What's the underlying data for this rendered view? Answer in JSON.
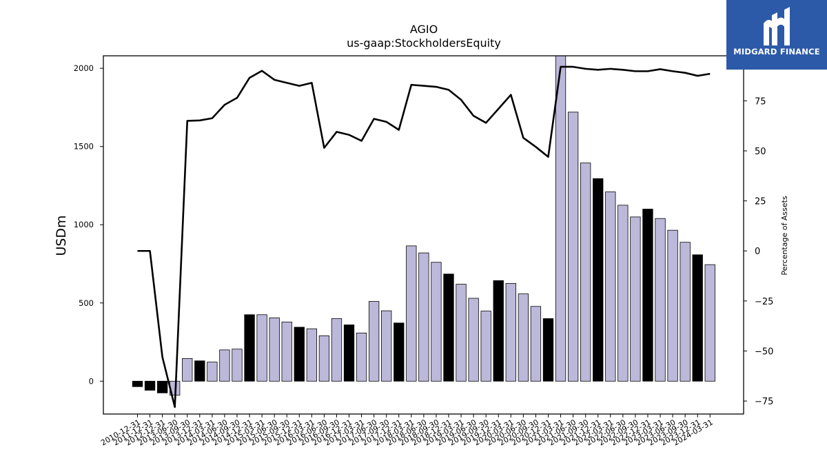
{
  "chart_data": {
    "type": "bar",
    "title": "AGIO",
    "subtitle": "us-gaap:StockholdersEquity",
    "ylabel": "USDm",
    "y2label": "Percentage of Assets",
    "ylim": [
      -210,
      2080
    ],
    "y2lim": [
      -81.5,
      97.5
    ],
    "yticks": [
      0,
      500,
      1000,
      1500,
      2000
    ],
    "y2ticks": [
      -75,
      -50,
      -25,
      0,
      25,
      50,
      75
    ],
    "categories": [
      "2010-12-31",
      "2011-12-31",
      "2012-12-31",
      "2013-06-30",
      "2013-09-30",
      "2013-12-31",
      "2014-03-31",
      "2014-06-30",
      "2014-09-30",
      "2014-12-31",
      "2015-03-31",
      "2015-06-30",
      "2015-09-30",
      "2015-12-31",
      "2016-03-31",
      "2016-06-30",
      "2016-09-30",
      "2016-12-31",
      "2017-03-31",
      "2017-06-30",
      "2017-09-30",
      "2017-12-31",
      "2018-03-31",
      "2018-06-30",
      "2018-09-30",
      "2018-12-31",
      "2019-03-31",
      "2019-06-30",
      "2019-09-30",
      "2019-12-31",
      "2020-03-31",
      "2020-06-30",
      "2020-09-30",
      "2020-12-31",
      "2021-03-31",
      "2021-06-30",
      "2021-09-30",
      "2021-12-31",
      "2022-03-31",
      "2022-06-30",
      "2022-09-30",
      "2022-12-31",
      "2023-03-31",
      "2023-06-30",
      "2023-09-30",
      "2023-12-31",
      "2024-03-31"
    ],
    "series": [
      {
        "type": "bar",
        "values": [
          -35,
          -58,
          -75,
          -90,
          145,
          130,
          122,
          200,
          205,
          425,
          425,
          405,
          378,
          345,
          335,
          290,
          400,
          360,
          308,
          510,
          450,
          372,
          865,
          820,
          760,
          685,
          620,
          530,
          448,
          643,
          625,
          558,
          478,
          400,
          2090,
          1720,
          1395,
          1295,
          1210,
          1125,
          1050,
          1100,
          1040,
          965,
          888,
          808,
          745
        ],
        "annual": [
          true,
          true,
          true,
          false,
          false,
          true,
          false,
          false,
          false,
          true,
          false,
          false,
          false,
          true,
          false,
          false,
          false,
          true,
          false,
          false,
          false,
          true,
          false,
          false,
          false,
          true,
          false,
          false,
          false,
          true,
          false,
          false,
          false,
          true,
          false,
          false,
          false,
          true,
          false,
          false,
          false,
          true,
          false,
          false,
          false,
          true,
          false
        ],
        "color_quarter": "#bcb8da",
        "color_annual": "#000000"
      },
      {
        "type": "line",
        "axis": "right",
        "values": [
          0,
          0,
          -53,
          -78,
          65,
          65.2,
          66.3,
          73,
          76.5,
          86.5,
          90,
          85.5,
          84,
          82.5,
          84,
          51.5,
          59.5,
          58,
          55,
          66,
          64.5,
          60.5,
          83,
          82.5,
          82,
          80.5,
          75.5,
          67.5,
          64,
          71,
          78,
          56.5,
          52,
          47,
          92,
          92,
          91,
          90.5,
          91,
          90.5,
          89.8,
          89.8,
          90.8,
          89.8,
          89,
          87.5,
          88.5
        ],
        "color": "#000000"
      }
    ],
    "grid": false,
    "legend": "none"
  },
  "logo": {
    "text": "MIDGARD FINANCE",
    "bg": "#2c5aa8"
  }
}
